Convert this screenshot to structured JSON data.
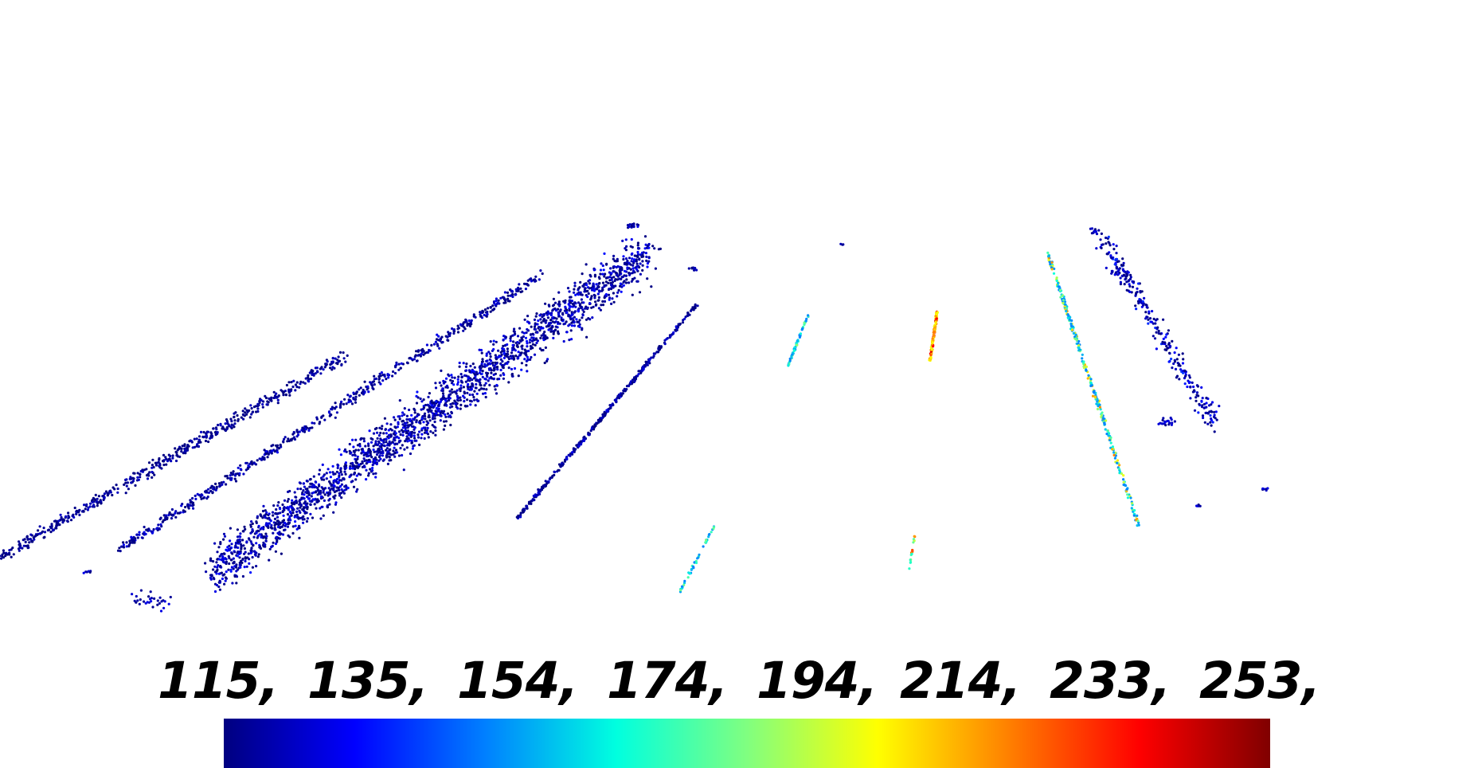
{
  "colorbar": {
    "tick_labels": [
      "115,",
      "135,",
      "154,",
      "174,",
      "194,",
      "214,",
      "233,",
      "253,"
    ],
    "colormap": "jet",
    "min": 115,
    "max": 253
  },
  "point_cloud": {
    "background": "#ffffff",
    "dominant_color": "#1a1aa8",
    "segments": [
      {
        "name": "far-left-lane-strip",
        "value_range": [
          115,
          125
        ]
      },
      {
        "name": "left-lane-strip",
        "value_range": [
          115,
          130
        ]
      },
      {
        "name": "wide-left-band",
        "value_range": [
          115,
          135
        ]
      },
      {
        "name": "center-left-line",
        "value_range": [
          115,
          130
        ]
      },
      {
        "name": "short-green-marker",
        "value_range": [
          150,
          200
        ]
      },
      {
        "name": "center-red-marker",
        "value_range": [
          200,
          250
        ]
      },
      {
        "name": "right-yellow-line",
        "value_range": [
          150,
          220
        ]
      },
      {
        "name": "right-edge-cluster",
        "value_range": [
          115,
          140
        ]
      },
      {
        "name": "lower-cyan-marker",
        "value_range": [
          150,
          185
        ]
      },
      {
        "name": "lower-center-marker",
        "value_range": [
          170,
          230
        ]
      }
    ]
  }
}
